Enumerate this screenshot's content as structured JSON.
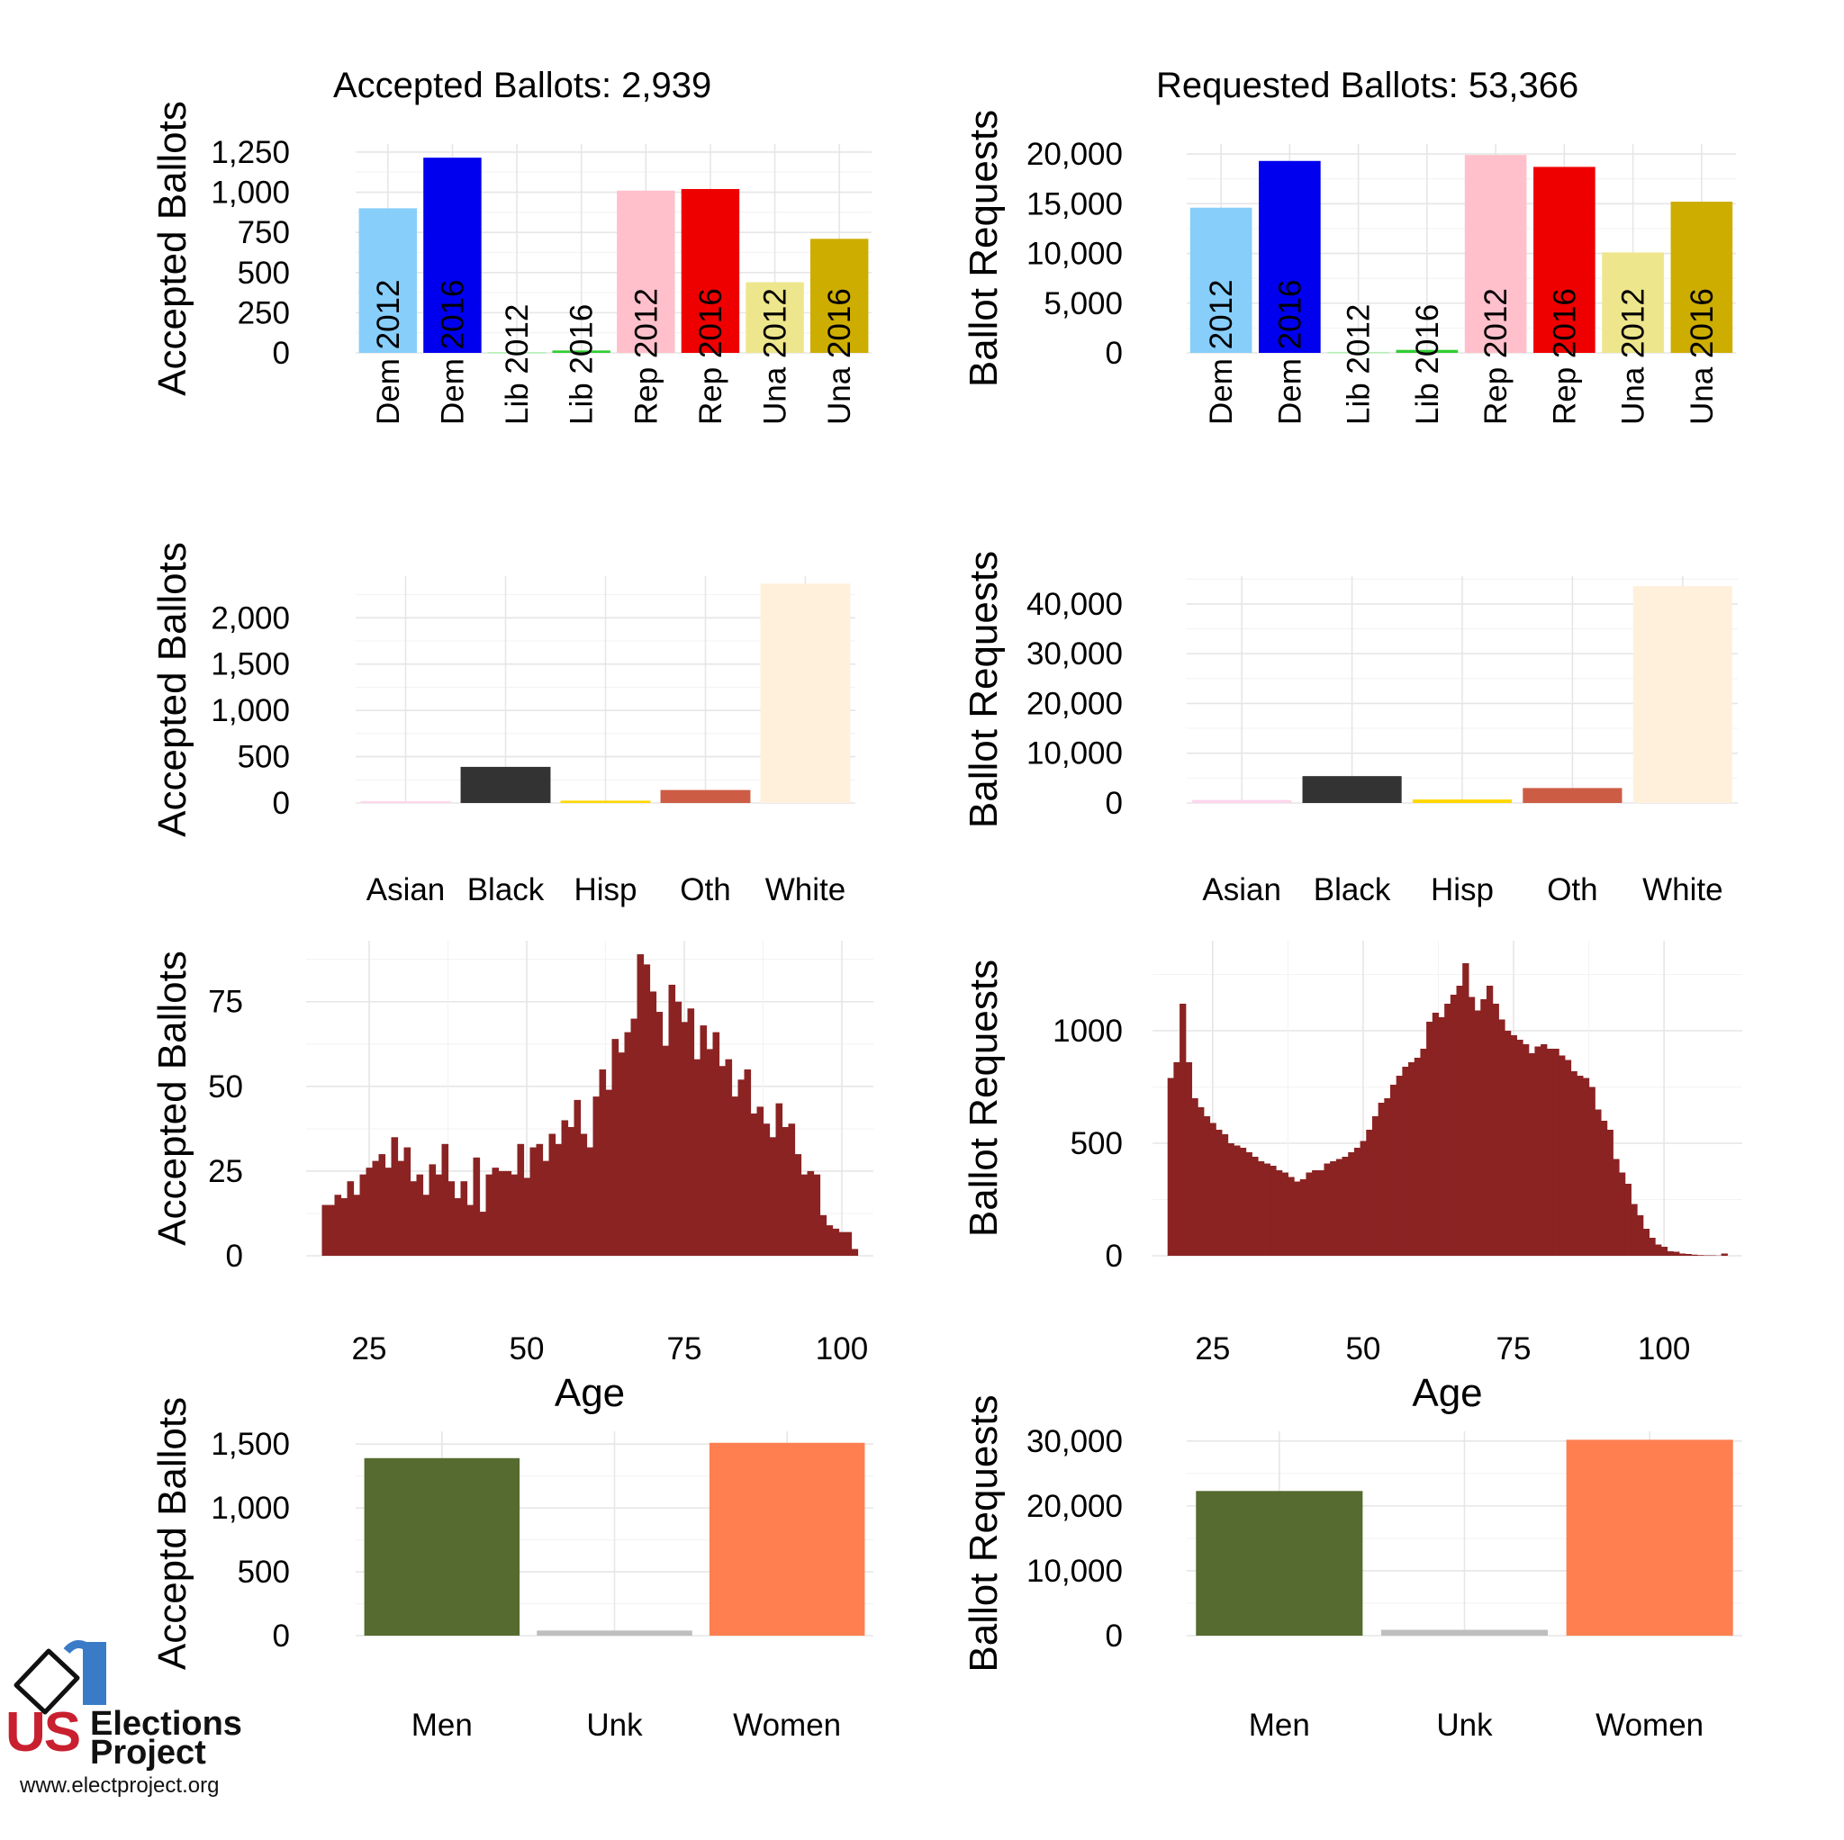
{
  "chart_data": [
    {
      "id": "acc-party",
      "type": "bar",
      "title": "Accepted Ballots:  2,939",
      "ylabel": "Accepted Ballots",
      "xlabel": "",
      "categories": [
        "Dem 2012",
        "Dem 2016",
        "Lib 2012",
        "Lib 2016",
        "Rep 2012",
        "Rep 2016",
        "Una 2012",
        "Una 2016"
      ],
      "values": [
        900,
        1215,
        5,
        15,
        1010,
        1020,
        440,
        710
      ],
      "colors": [
        "#87cefa",
        "#0000ee",
        "#b3f0b3",
        "#32cd32",
        "#ffc0cb",
        "#ee0000",
        "#eee68c",
        "#cdad00"
      ],
      "ylim": [
        0,
        1300
      ],
      "yticks": [
        0,
        250,
        500,
        750,
        1000,
        1250
      ],
      "ytick_labels": [
        "0",
        "250",
        "500",
        "750",
        "1,000",
        "1,250"
      ],
      "xtick_rotate": true
    },
    {
      "id": "req-party",
      "type": "bar",
      "title": "Requested Ballots:  53,366",
      "ylabel": "Ballot Requests",
      "xlabel": "",
      "categories": [
        "Dem 2012",
        "Dem 2016",
        "Lib 2012",
        "Lib 2016",
        "Rep 2012",
        "Rep 2016",
        "Una 2012",
        "Una 2016"
      ],
      "values": [
        14600,
        19300,
        100,
        300,
        19900,
        18700,
        10100,
        15200
      ],
      "colors": [
        "#87cefa",
        "#0000ee",
        "#b3f0b3",
        "#32cd32",
        "#ffc0cb",
        "#ee0000",
        "#eee68c",
        "#cdad00"
      ],
      "ylim": [
        0,
        21000
      ],
      "yticks": [
        0,
        5000,
        10000,
        15000,
        20000
      ],
      "ytick_labels": [
        "0",
        "5,000",
        "10,000",
        "15,000",
        "20,000"
      ],
      "xtick_rotate": true
    },
    {
      "id": "acc-race",
      "type": "bar",
      "title": "",
      "ylabel": "Accepted Ballots",
      "xlabel": "",
      "categories": [
        "Asian",
        "Black",
        "Hisp",
        "Oth",
        "White"
      ],
      "values": [
        20,
        390,
        25,
        140,
        2370
      ],
      "colors": [
        "#ffd6ec",
        "#333333",
        "#ffd700",
        "#cd5c45",
        "#fff0dc"
      ],
      "ylim": [
        0,
        2450
      ],
      "yticks": [
        0,
        500,
        1000,
        1500,
        2000
      ],
      "ytick_labels": [
        "0",
        "500",
        "1,000",
        "1,500",
        "2,000"
      ],
      "xtick_rotate": false
    },
    {
      "id": "req-race",
      "type": "bar",
      "title": "",
      "ylabel": "Ballot Requests",
      "xlabel": "",
      "categories": [
        "Asian",
        "Black",
        "Hisp",
        "Oth",
        "White"
      ],
      "values": [
        600,
        5400,
        700,
        3000,
        43600
      ],
      "colors": [
        "#ffd6ec",
        "#333333",
        "#ffd700",
        "#cd5c45",
        "#fff0dc"
      ],
      "ylim": [
        0,
        45600
      ],
      "yticks": [
        0,
        10000,
        20000,
        30000,
        40000
      ],
      "ytick_labels": [
        "0",
        "10,000",
        "20,000",
        "30,000",
        "40,000"
      ],
      "xtick_rotate": false
    },
    {
      "id": "acc-age",
      "type": "bar",
      "title": "",
      "ylabel": "Accepted Ballots",
      "xlabel": "Age",
      "histogram": true,
      "color": "#8b2323",
      "x": [
        18,
        19,
        20,
        21,
        22,
        23,
        24,
        25,
        26,
        27,
        28,
        29,
        30,
        31,
        32,
        33,
        34,
        35,
        36,
        37,
        38,
        39,
        40,
        41,
        42,
        43,
        44,
        45,
        46,
        47,
        48,
        49,
        50,
        51,
        52,
        53,
        54,
        55,
        56,
        57,
        58,
        59,
        60,
        61,
        62,
        63,
        64,
        65,
        66,
        67,
        68,
        69,
        70,
        71,
        72,
        73,
        74,
        75,
        76,
        77,
        78,
        79,
        80,
        81,
        82,
        83,
        84,
        85,
        86,
        87,
        88,
        89,
        90,
        91,
        92,
        93,
        94,
        95,
        96,
        97,
        98,
        99,
        100,
        101,
        102
      ],
      "values": [
        15,
        15,
        18,
        17,
        22,
        18,
        24,
        26,
        28,
        30,
        26,
        35,
        28,
        32,
        22,
        24,
        18,
        27,
        24,
        33,
        22,
        17,
        22,
        15,
        29,
        13,
        24,
        26,
        25,
        25,
        24,
        33,
        23,
        32,
        33,
        28,
        36,
        33,
        40,
        38,
        46,
        36,
        32,
        47,
        55,
        49,
        64,
        60,
        66,
        70,
        89,
        86,
        78,
        72,
        62,
        80,
        75,
        69,
        73,
        58,
        68,
        61,
        66,
        56,
        58,
        47,
        52,
        55,
        42,
        44,
        39,
        35,
        45,
        38,
        39,
        30,
        24,
        25,
        24,
        12,
        9,
        8,
        7,
        7,
        2
      ],
      "xlim": [
        15,
        105
      ],
      "ylim": [
        0,
        93
      ],
      "xticks": [
        25,
        50,
        75,
        100
      ],
      "xtick_labels": [
        "25",
        "50",
        "75",
        "100"
      ],
      "yticks": [
        0,
        25,
        50,
        75
      ],
      "ytick_labels": [
        "0",
        "25",
        "50",
        "75"
      ]
    },
    {
      "id": "req-age",
      "type": "bar",
      "title": "",
      "ylabel": "Ballot Requests",
      "xlabel": "Age",
      "histogram": true,
      "color": "#8b2323",
      "x": [
        18,
        19,
        20,
        21,
        22,
        23,
        24,
        25,
        26,
        27,
        28,
        29,
        30,
        31,
        32,
        33,
        34,
        35,
        36,
        37,
        38,
        39,
        40,
        41,
        42,
        43,
        44,
        45,
        46,
        47,
        48,
        49,
        50,
        51,
        52,
        53,
        54,
        55,
        56,
        57,
        58,
        59,
        60,
        61,
        62,
        63,
        64,
        65,
        66,
        67,
        68,
        69,
        70,
        71,
        72,
        73,
        74,
        75,
        76,
        77,
        78,
        79,
        80,
        81,
        82,
        83,
        84,
        85,
        86,
        87,
        88,
        89,
        90,
        91,
        92,
        93,
        94,
        95,
        96,
        97,
        98,
        99,
        100,
        101,
        102,
        103,
        104,
        105,
        106,
        107,
        108,
        109,
        110
      ],
      "values": [
        790,
        860,
        1120,
        860,
        700,
        660,
        620,
        590,
        560,
        540,
        500,
        490,
        480,
        460,
        440,
        420,
        410,
        400,
        380,
        370,
        350,
        330,
        340,
        370,
        380,
        380,
        410,
        420,
        430,
        440,
        460,
        480,
        510,
        560,
        620,
        680,
        700,
        760,
        800,
        840,
        860,
        880,
        920,
        1040,
        1080,
        1060,
        1120,
        1160,
        1200,
        1300,
        1150,
        1090,
        1140,
        1200,
        1120,
        1050,
        1000,
        980,
        960,
        940,
        900,
        930,
        940,
        920,
        920,
        890,
        870,
        820,
        800,
        790,
        750,
        650,
        600,
        560,
        430,
        370,
        320,
        230,
        180,
        120,
        80,
        50,
        40,
        20,
        18,
        10,
        8,
        5,
        3,
        2,
        2,
        1,
        10
      ],
      "xlim": [
        15,
        113
      ],
      "ylim": [
        0,
        1400
      ],
      "xticks": [
        25,
        50,
        75,
        100
      ],
      "xtick_labels": [
        "25",
        "50",
        "75",
        "100"
      ],
      "yticks": [
        0,
        500,
        1000
      ],
      "ytick_labels": [
        "0",
        "500",
        "1000"
      ]
    },
    {
      "id": "acc-gender",
      "type": "bar",
      "title": "",
      "ylabel": "Acceptd Ballots",
      "xlabel": "",
      "categories": [
        "Men",
        "Unk",
        "Women"
      ],
      "values": [
        1390,
        40,
        1510
      ],
      "colors": [
        "#556b2f",
        "#bebebe",
        "#ff7f50"
      ],
      "ylim": [
        0,
        1600
      ],
      "yticks": [
        0,
        500,
        1000,
        1500
      ],
      "ytick_labels": [
        "0",
        "500",
        "1,000",
        "1,500"
      ],
      "xtick_rotate": false
    },
    {
      "id": "req-gender",
      "type": "bar",
      "title": "",
      "ylabel": "Ballot Requests",
      "xlabel": "",
      "categories": [
        "Men",
        "Unk",
        "Women"
      ],
      "values": [
        22300,
        900,
        30200
      ],
      "colors": [
        "#556b2f",
        "#bebebe",
        "#ff7f50"
      ],
      "ylim": [
        0,
        31500
      ],
      "yticks": [
        0,
        10000,
        20000,
        30000
      ],
      "ytick_labels": [
        "0",
        "10,000",
        "20,000",
        "30,000"
      ],
      "xtick_rotate": false
    }
  ],
  "logo": {
    "brand_short": "US",
    "brand_line1": "Elections",
    "brand_line2": "Project",
    "url": "www.electproject.org"
  }
}
